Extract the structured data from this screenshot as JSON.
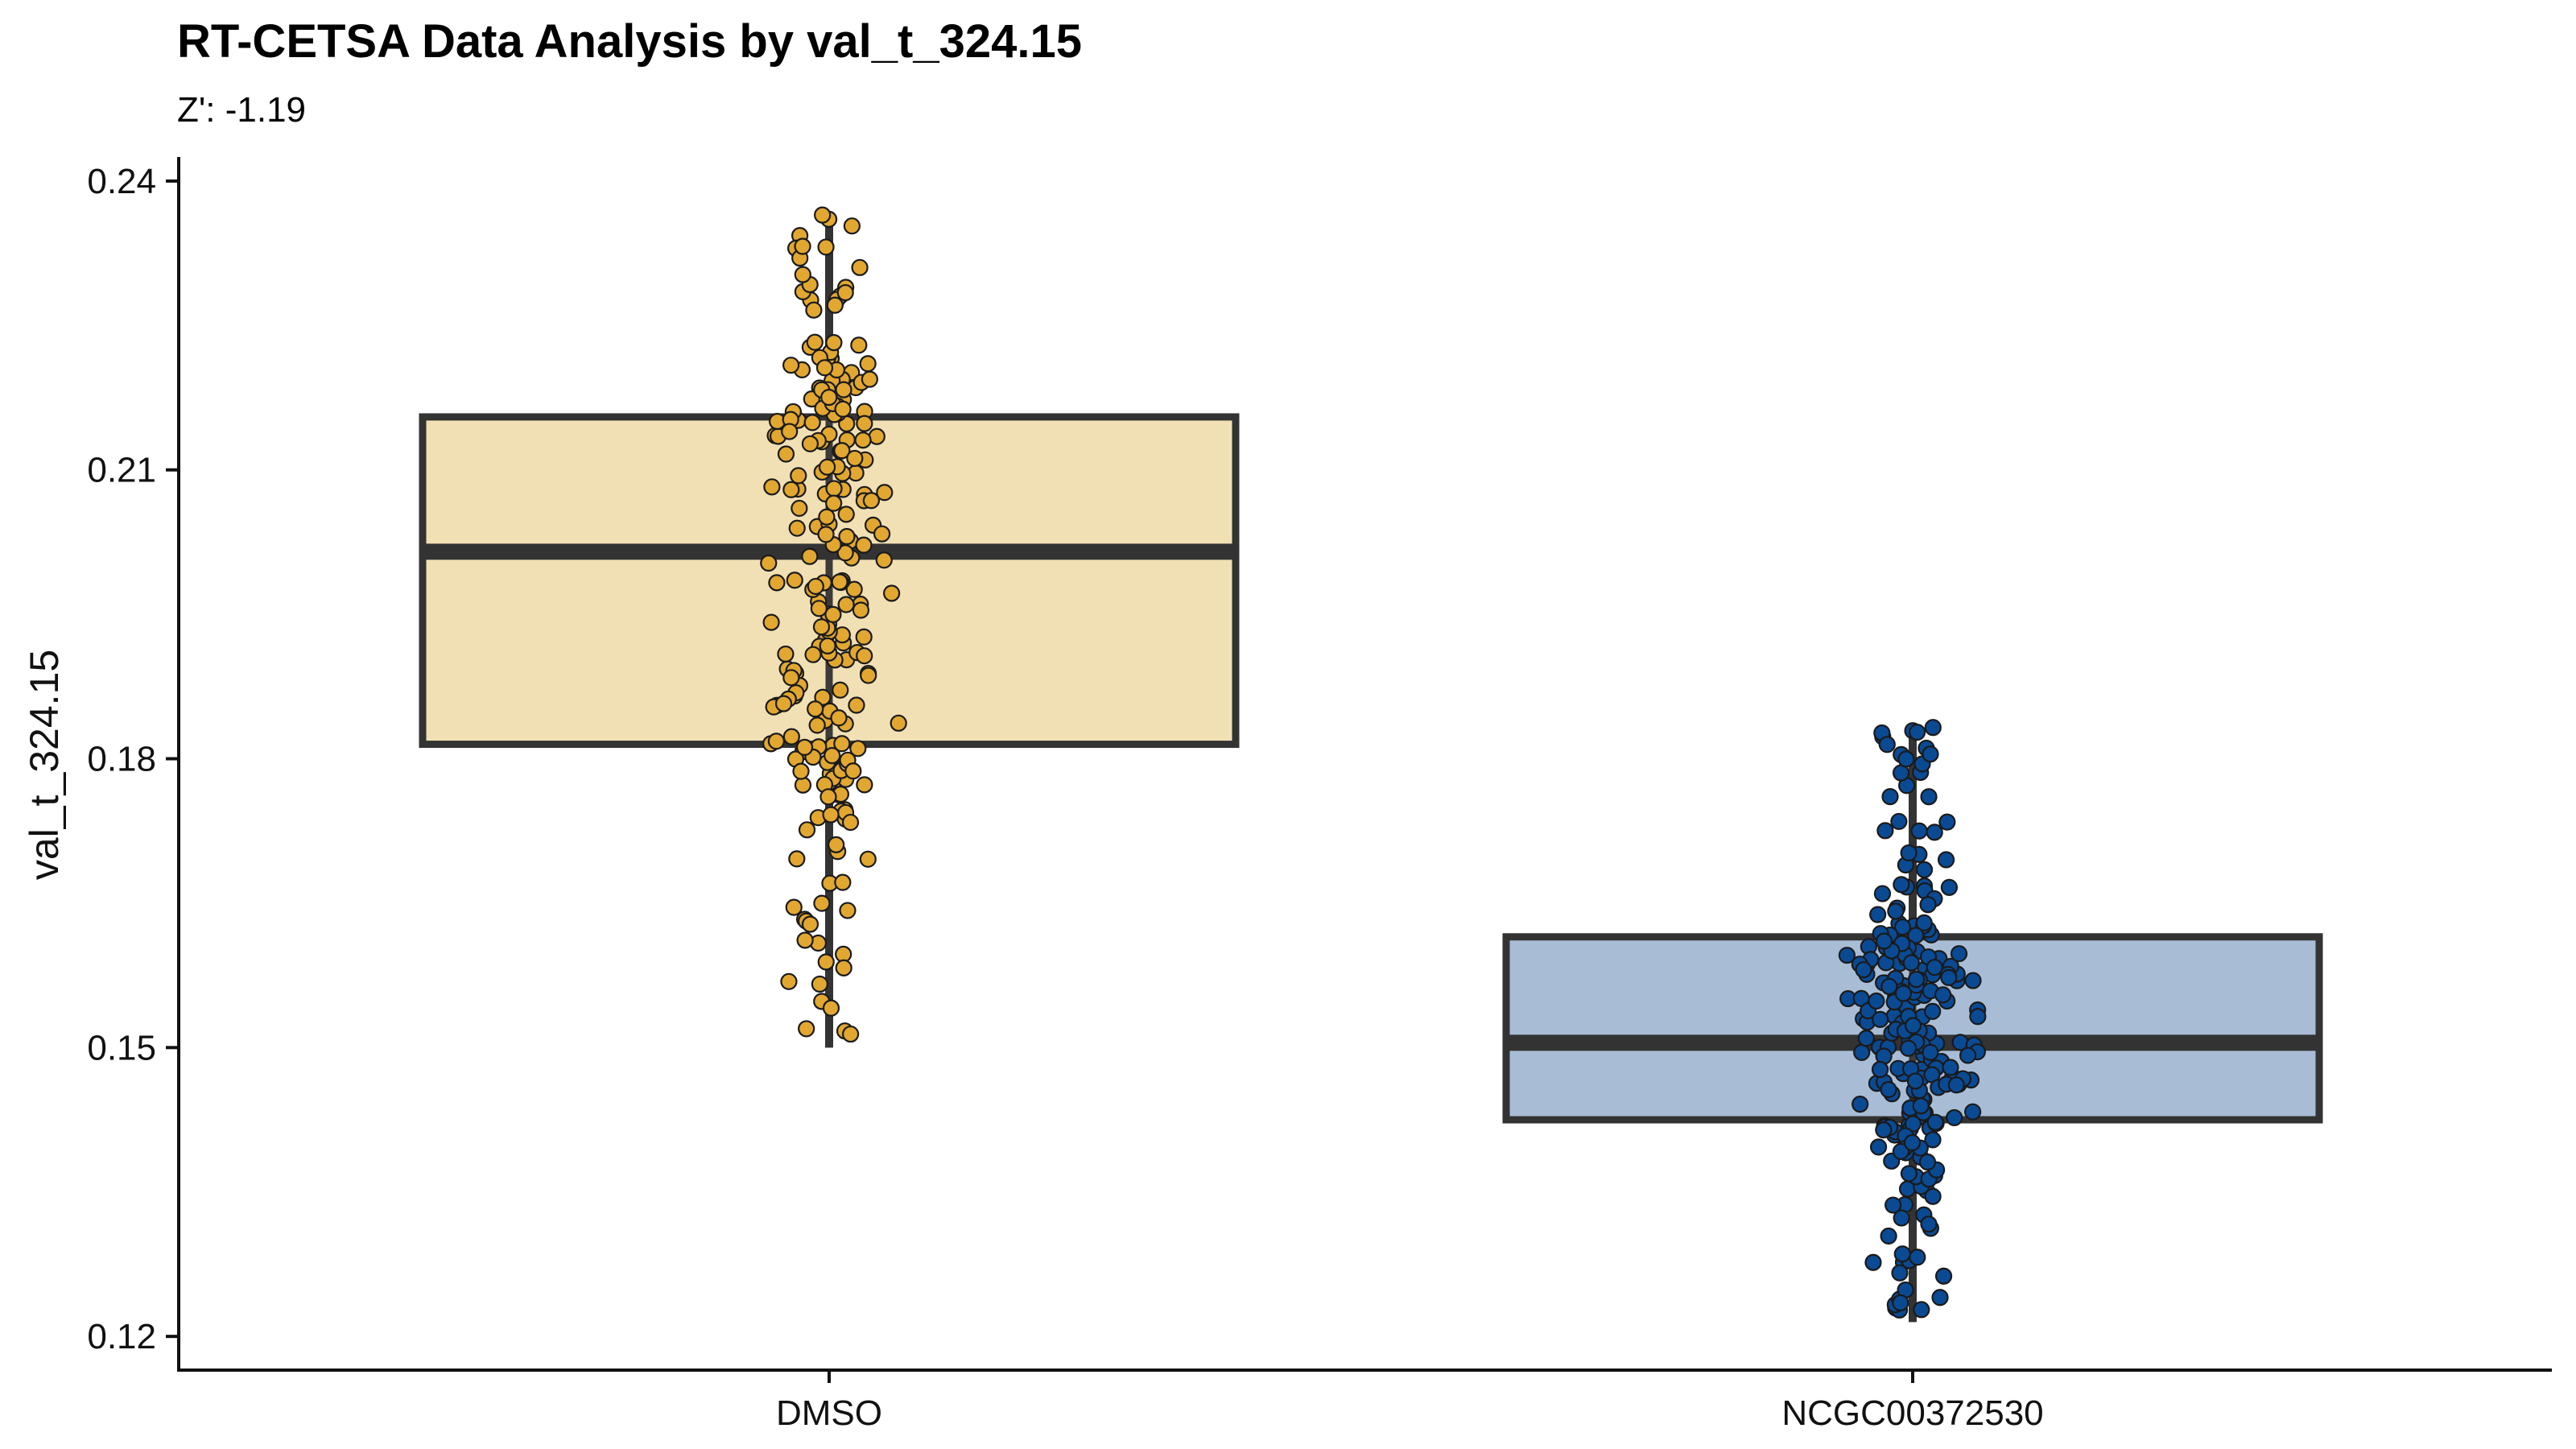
{
  "chart_data": {
    "type": "box",
    "title": "RT-CETSA Data Analysis by val_t_324.15",
    "subtitle": "Z': -1.19",
    "xlabel": "",
    "ylabel": "val_t_324.15",
    "ylim": [
      0.1165,
      0.2425
    ],
    "yticks": [
      0.12,
      0.15,
      0.18,
      0.21,
      0.24
    ],
    "ytick_labels": [
      "0.12",
      "0.15",
      "0.18",
      "0.21",
      "0.24"
    ],
    "categories": [
      "DMSO",
      "NCGC00372530"
    ],
    "grid": false,
    "legend": "none",
    "series": [
      {
        "category": "DMSO",
        "box_fill": "#F2E0B5",
        "point_fill": "#E1A730",
        "box": {
          "whisker_low": 0.15,
          "q1": 0.1815,
          "median": 0.2015,
          "q3": 0.2155,
          "whisker_high": 0.2365
        }
      },
      {
        "category": "NCGC00372530",
        "box_fill": "#A8BDD5",
        "point_fill": "#0A4A93",
        "box": {
          "whisker_low": 0.1215,
          "q1": 0.1425,
          "median": 0.1505,
          "q3": 0.1615,
          "whisker_high": 0.1835
        }
      }
    ],
    "box_stroke": "#333333",
    "point_stroke": "#1a1a1a"
  }
}
